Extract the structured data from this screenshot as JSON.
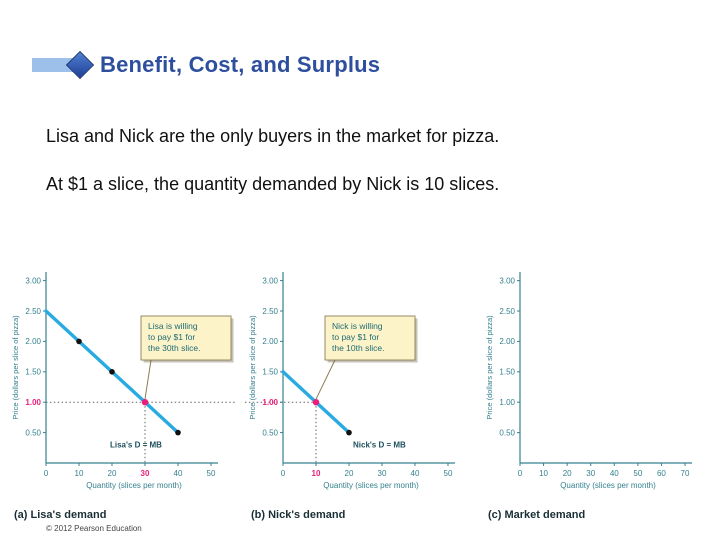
{
  "slide": {
    "title": "Benefit, Cost, and Surplus",
    "body_lines": [
      "Lisa and Nick are the only buyers in the market for pizza.",
      "At $1 a slice, the quantity demanded by Nick is 10 slices."
    ],
    "footer": "© 2012 Pearson Education"
  },
  "colors": {
    "title_blue": "#2d4f9e",
    "line_cyan": "#29abe2",
    "highlight_magenta": "#ec1e79",
    "axis_teal": "#35808e",
    "label_teal": "#1d4f5c",
    "annotation_bg": "#fdf3c8",
    "annotation_border": "#8a7d54",
    "annotation_text": "#1d6b77",
    "dot_black": "#111111",
    "dotted_line": "#666666"
  },
  "chart_data": [
    {
      "type": "line",
      "title": "(a) Lisa's demand",
      "ylabel": "Price (dollars per slice of pizza)",
      "xlabel": "Quantity (slices per month)",
      "x_ticks": [
        0,
        10,
        20,
        30,
        40,
        50
      ],
      "y_ticks": [
        "0.50",
        "1.00",
        "1.50",
        "2.00",
        "2.50",
        "3.00"
      ],
      "xlim": [
        0,
        50
      ],
      "ylim": [
        0,
        3.25
      ],
      "grid": false,
      "series": [
        {
          "name": "Lisa's D = MB",
          "points": [
            [
              0,
              2.5
            ],
            [
              40,
              0.5
            ]
          ]
        }
      ],
      "dots_black": [
        [
          10,
          2.0
        ],
        [
          20,
          1.5
        ],
        [
          40,
          0.5
        ]
      ],
      "dot_highlight": [
        30,
        1.0
      ],
      "highlight_x_tick": 30,
      "highlight_y_tick": "1.00",
      "line_label": "Lisa's D = MB",
      "annotation": {
        "lines": [
          "Lisa is willing",
          "to pay $1 for",
          "the 30th slice."
        ],
        "box_x": 133,
        "box_y": 62
      },
      "dotted_horizontal": "extends-right"
    },
    {
      "type": "line",
      "title": "(b) Nick's demand",
      "ylabel": "Price (dollars per slice of pizza)",
      "xlabel": "Quantity (slices per month)",
      "x_ticks": [
        0,
        10,
        20,
        30,
        40,
        50
      ],
      "y_ticks": [
        "0.50",
        "1.00",
        "1.50",
        "2.00",
        "2.50",
        "3.00"
      ],
      "xlim": [
        0,
        50
      ],
      "ylim": [
        0,
        3.25
      ],
      "grid": false,
      "series": [
        {
          "name": "Nick's D = MB",
          "points": [
            [
              0,
              1.5
            ],
            [
              20,
              0.5
            ]
          ]
        }
      ],
      "dots_black": [
        [
          20,
          0.5
        ]
      ],
      "dot_highlight": [
        10,
        1.0
      ],
      "highlight_x_tick": 10,
      "highlight_y_tick": "1.00",
      "line_label": "Nick's D = MB",
      "annotation": {
        "lines": [
          "Nick is willing",
          "to pay $1 for",
          "the 10th slice."
        ],
        "box_x": 80,
        "box_y": 62
      },
      "dotted_horizontal": "extends-left"
    },
    {
      "type": "line",
      "title": "(c) Market demand",
      "ylabel": "Price (dollars per slice of pizza)",
      "xlabel": "Quantity (slices per month)",
      "x_ticks": [
        0,
        10,
        20,
        30,
        40,
        50,
        60,
        70
      ],
      "y_ticks": [
        "0.50",
        "1.00",
        "1.50",
        "2.00",
        "2.50",
        "3.00"
      ],
      "xlim": [
        0,
        70
      ],
      "ylim": [
        0,
        3.25
      ],
      "grid": false,
      "series": []
    }
  ]
}
